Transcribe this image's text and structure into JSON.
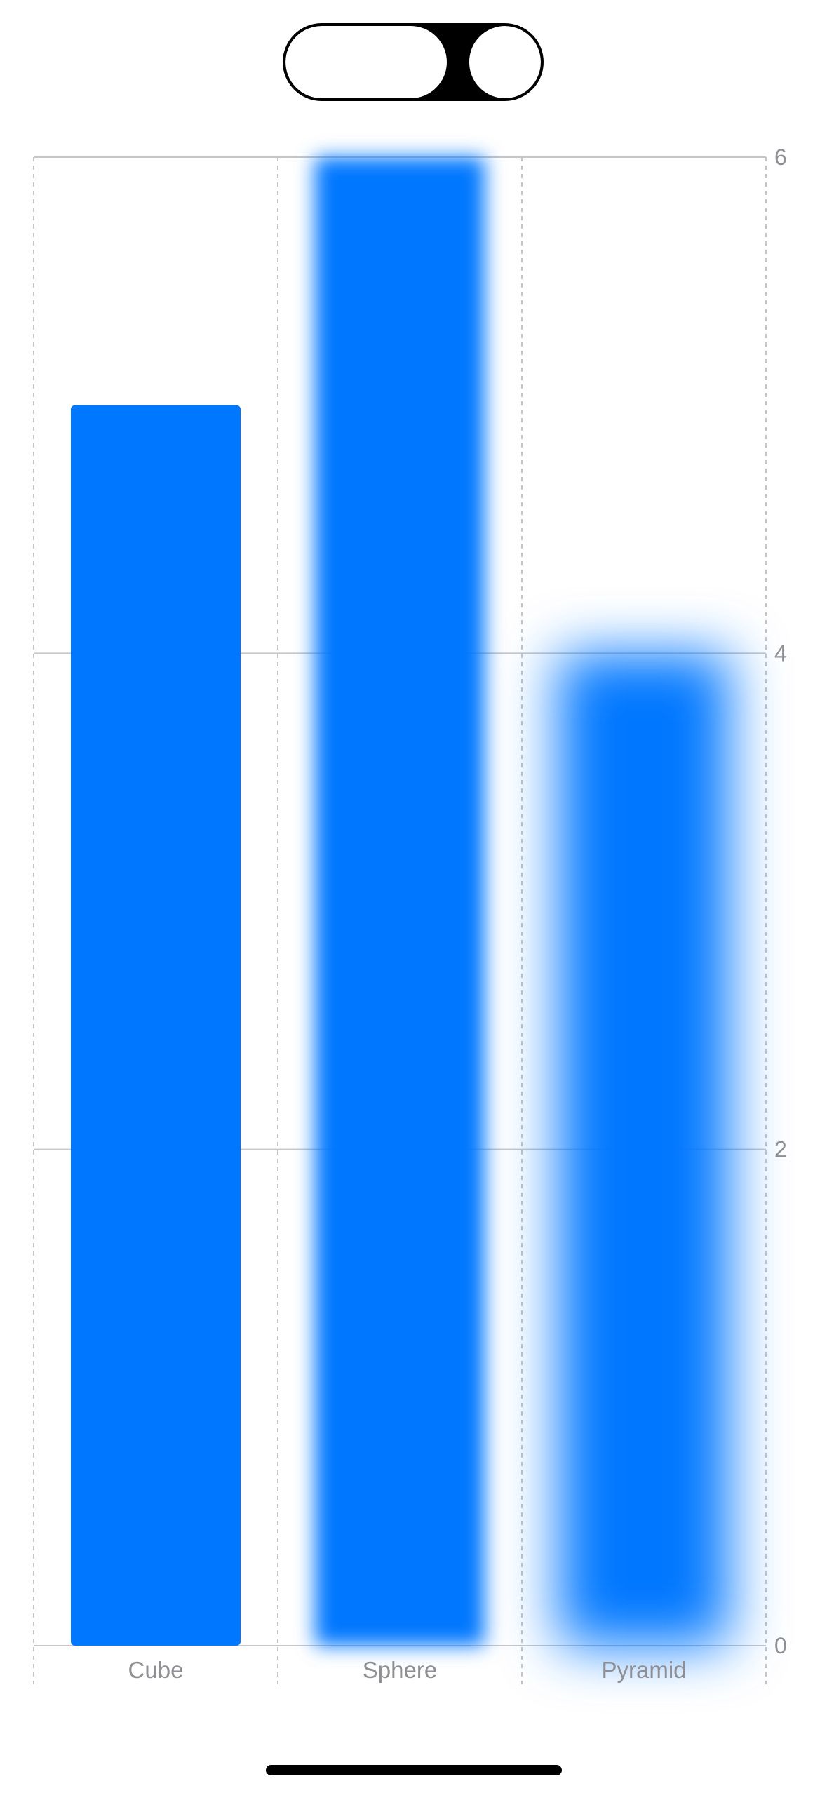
{
  "segmented_control": {
    "segments": [
      "",
      ""
    ],
    "selected_index": 1
  },
  "chart_data": {
    "type": "bar",
    "categories": [
      "Cube",
      "Sphere",
      "Pyramid"
    ],
    "values": [
      5.0,
      6.0,
      4.0
    ],
    "ylim": [
      0,
      6
    ],
    "yticks": [
      "0",
      "2",
      "4",
      "6"
    ],
    "y_axis_position": "right",
    "grid": true,
    "bar_color": "#0077FF",
    "blurred_categories": [
      "Sphere",
      "Pyramid"
    ]
  }
}
